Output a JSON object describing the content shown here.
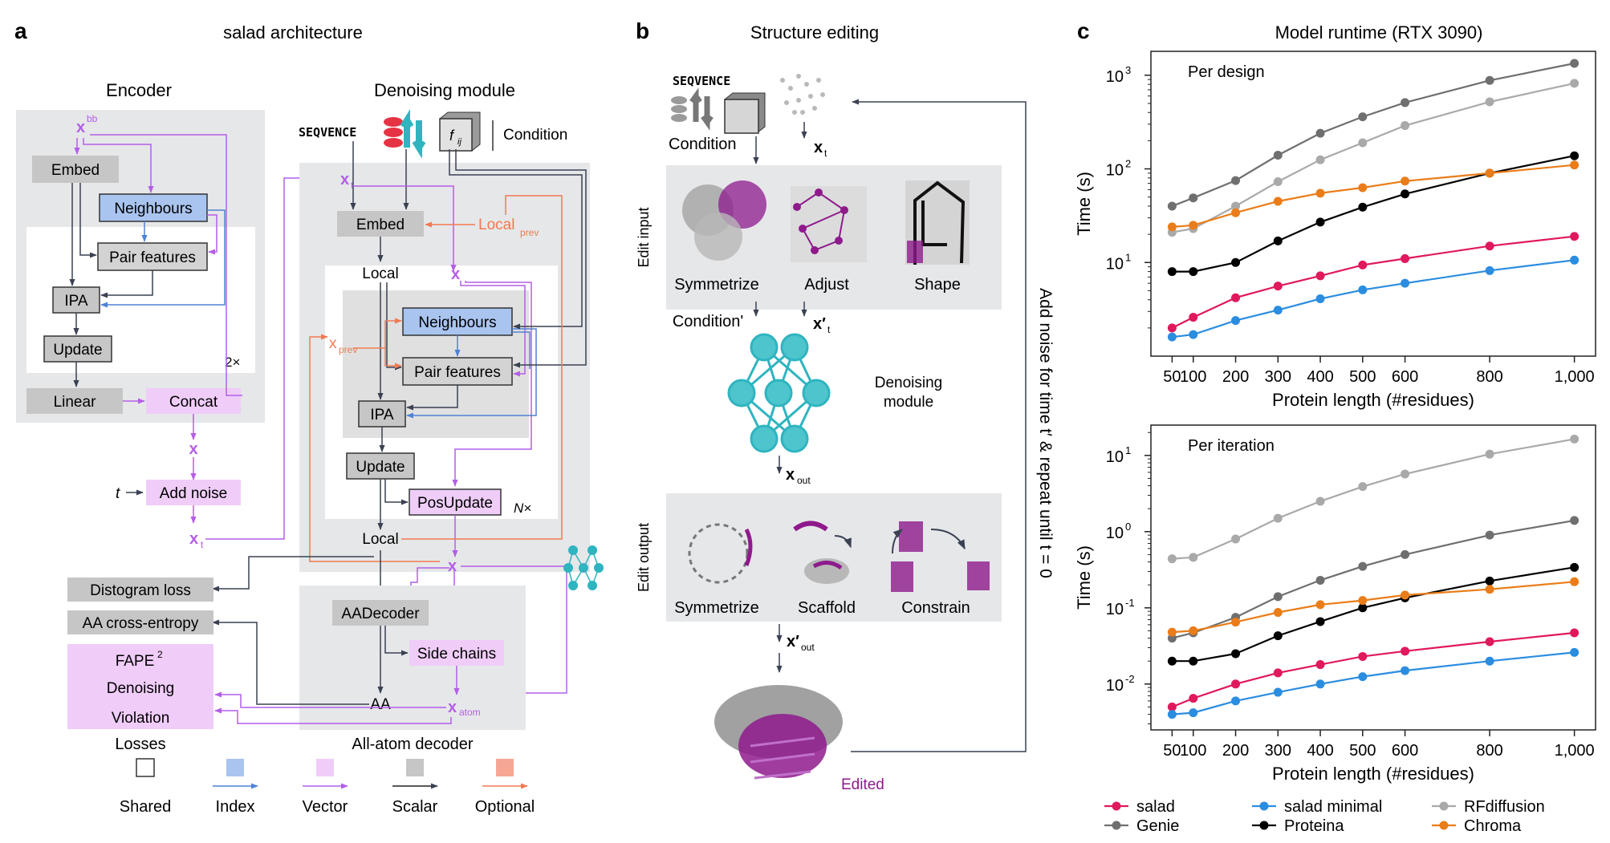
{
  "panel_a": {
    "letter": "a",
    "title": "salad architecture",
    "encoder": {
      "heading": "Encoder",
      "input_x": "x",
      "input_sup": "bb",
      "embed": "Embed",
      "neighbours": "Neighbours",
      "pair_features": "Pair features",
      "ipa": "IPA",
      "update": "Update",
      "repeat": "2×",
      "linear": "Linear",
      "concat": "Concat",
      "x": "x",
      "t": "t",
      "add_noise": "Add noise",
      "xt": "x",
      "xt_sub": "t"
    },
    "denoising": {
      "heading": "Denoising module",
      "seq_label": "SEQVENCE",
      "fij": "f",
      "fij_sub": "ij",
      "condition": "Condition",
      "xt": "x",
      "xt_sub": "t",
      "embed": "Embed",
      "local_prev": "Local",
      "local_prev_sub": "prev",
      "local": "Local",
      "x": "x",
      "x_prev": "x",
      "x_prev_sub": "prev",
      "neighbours": "Neighbours",
      "pair_features": "Pair features",
      "ipa": "IPA",
      "update": "Update",
      "pos_update": "PosUpdate",
      "repeat": "N×",
      "local_out": "Local",
      "x_out": "x"
    },
    "decoder": {
      "aadecoder": "AADecoder",
      "side_chains": "Side chains",
      "aa": "AA",
      "x_atom": "x",
      "x_atom_sub": "atom",
      "caption": "All-atom decoder"
    },
    "losses": {
      "distogram": "Distogram loss",
      "aa_ce": "AA cross-entropy",
      "fape": "FAPE",
      "fape_sup": "2",
      "denoising": "Denoising",
      "violation": "Violation",
      "caption": "Losses"
    },
    "legend": [
      {
        "label": "Shared",
        "color": "#ffffff",
        "arrow": ""
      },
      {
        "label": "Index",
        "color": "#a9c4ef",
        "arrow": "#4f82d6"
      },
      {
        "label": "Vector",
        "color": "#efcdf8",
        "arrow": "#b45ee8"
      },
      {
        "label": "Scalar",
        "color": "#c6c6c6",
        "arrow": "#222222"
      },
      {
        "label": "Optional",
        "color": "#f6a794",
        "arrow": "#f07a52"
      }
    ]
  },
  "panel_b": {
    "letter": "b",
    "title": "Structure editing",
    "seq_label": "SEQVENCE",
    "condition": "Condition",
    "xt": "x",
    "xt_sub": "t",
    "edit_input": "Edit input",
    "symmetrize": "Symmetrize",
    "adjust": "Adjust",
    "shape": "Shape",
    "condition_prime": "Condition'",
    "xt_prime": "x′",
    "xt_prime_sub": "t",
    "denoising_module": "Denoising\nmodule",
    "x_out": "x",
    "x_out_sub": "out",
    "edit_output": "Edit output",
    "symmetrize_out": "Symmetrize",
    "scaffold": "Scaffold",
    "constrain": "Constrain",
    "x_out_prime": "x′",
    "x_out_prime_sub": "out",
    "edited": "Edited",
    "loop_text": "Add noise for time t′ & repeat until t = 0"
  },
  "panel_c": {
    "letter": "c",
    "title": "Model runtime (RTX 3090)",
    "legend": [
      {
        "name": "salad",
        "color": "#e0185d"
      },
      {
        "name": "salad minimal",
        "color": "#2b8de0"
      },
      {
        "name": "RFdiffusion",
        "color": "#a9a9a9"
      },
      {
        "name": "Genie",
        "color": "#6f6f6f"
      },
      {
        "name": "Proteina",
        "color": "#000000"
      },
      {
        "name": "Chroma",
        "color": "#ea7d19"
      }
    ]
  },
  "chart_data": [
    {
      "type": "line",
      "title": "Per design",
      "xlabel": "Protein length (#residues)",
      "ylabel": "Time (s)",
      "x": [
        50,
        100,
        200,
        300,
        400,
        500,
        600,
        800,
        1000
      ],
      "x_tick_labels": [
        "50",
        "100",
        "200",
        "300",
        "400",
        "500",
        "600",
        "800",
        "1,000"
      ],
      "yscale": "log",
      "ylim": [
        1,
        1800
      ],
      "y_ticks": [
        10,
        100,
        1000
      ],
      "y_tick_labels": [
        [
          "10",
          "1"
        ],
        [
          "10",
          "2"
        ],
        [
          "10",
          "3"
        ]
      ],
      "series": [
        {
          "name": "salad",
          "color": "#e0185d",
          "values": [
            2.0,
            2.6,
            4.2,
            5.6,
            7.2,
            9.4,
            11,
            15,
            19
          ]
        },
        {
          "name": "salad minimal",
          "color": "#2b8de0",
          "values": [
            1.6,
            1.7,
            2.4,
            3.1,
            4.1,
            5.1,
            6.0,
            8.2,
            10.6
          ]
        },
        {
          "name": "RFdiffusion",
          "color": "#a9a9a9",
          "values": [
            21,
            23,
            40,
            73,
            125,
            190,
            290,
            520,
            820
          ]
        },
        {
          "name": "Genie",
          "color": "#6f6f6f",
          "values": [
            40,
            49,
            75,
            140,
            240,
            360,
            510,
            880,
            1340
          ]
        },
        {
          "name": "Proteina",
          "color": "#000000",
          "values": [
            8,
            8,
            10,
            17,
            27,
            39,
            54,
            90,
            138
          ]
        },
        {
          "name": "Chroma",
          "color": "#ea7d19",
          "values": [
            24,
            25,
            34,
            45,
            55,
            63,
            74,
            90,
            110
          ]
        }
      ]
    },
    {
      "type": "line",
      "title": "Per iteration",
      "xlabel": "Protein length (#residues)",
      "ylabel": "Time (s)",
      "x": [
        50,
        100,
        200,
        300,
        400,
        500,
        600,
        800,
        1000
      ],
      "x_tick_labels": [
        "50",
        "100",
        "200",
        "300",
        "400",
        "500",
        "600",
        "800",
        "1,000"
      ],
      "yscale": "log",
      "ylim": [
        0.0025,
        25
      ],
      "y_ticks": [
        0.01,
        0.1,
        1,
        10
      ],
      "y_tick_labels": [
        [
          "10",
          "-2"
        ],
        [
          "10",
          "-1"
        ],
        [
          "10",
          "0"
        ],
        [
          "10",
          "1"
        ]
      ],
      "series": [
        {
          "name": "salad",
          "color": "#e0185d",
          "values": [
            0.005,
            0.0065,
            0.01,
            0.014,
            0.018,
            0.023,
            0.027,
            0.036,
            0.047
          ]
        },
        {
          "name": "salad minimal",
          "color": "#2b8de0",
          "values": [
            0.004,
            0.0042,
            0.006,
            0.0078,
            0.01,
            0.0125,
            0.015,
            0.02,
            0.026
          ]
        },
        {
          "name": "RFdiffusion",
          "color": "#a9a9a9",
          "values": [
            0.44,
            0.46,
            0.8,
            1.5,
            2.5,
            3.9,
            5.7,
            10.4,
            16.4
          ]
        },
        {
          "name": "Genie",
          "color": "#6f6f6f",
          "values": [
            0.04,
            0.047,
            0.075,
            0.14,
            0.23,
            0.35,
            0.5,
            0.9,
            1.4
          ]
        },
        {
          "name": "Proteina",
          "color": "#000000",
          "values": [
            0.02,
            0.02,
            0.025,
            0.043,
            0.066,
            0.1,
            0.135,
            0.225,
            0.34
          ]
        },
        {
          "name": "Chroma",
          "color": "#ea7d19",
          "values": [
            0.048,
            0.05,
            0.065,
            0.087,
            0.11,
            0.125,
            0.147,
            0.175,
            0.22
          ]
        }
      ]
    }
  ]
}
